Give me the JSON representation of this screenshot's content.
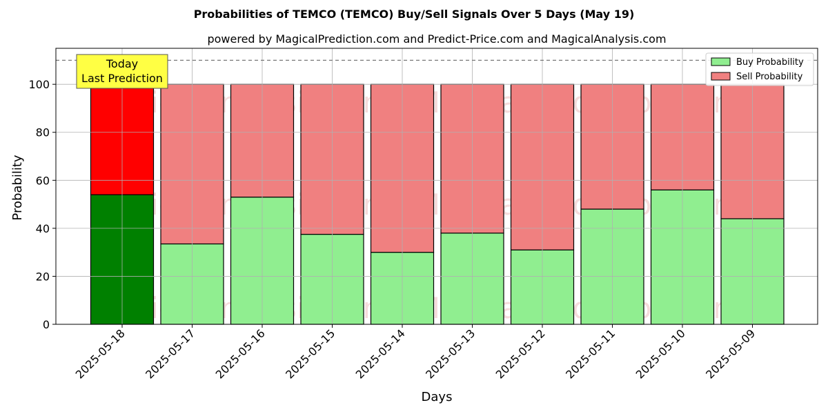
{
  "chart_data": {
    "type": "bar",
    "stacked": true,
    "title": "Probabilities of TEMCO (TEMCO) Buy/Sell Signals Over 5 Days (May 19)",
    "subtitle": "powered by MagicalPrediction.com and Predict-Price.com and MagicalAnalysis.com",
    "xlabel": "Days",
    "ylabel": "Probability",
    "ylim": [
      0,
      115
    ],
    "yticks": [
      0,
      20,
      40,
      60,
      80,
      100
    ],
    "grid": true,
    "legend_position": "top-right",
    "reference_line": 110,
    "categories": [
      "2025-05-18",
      "2025-05-17",
      "2025-05-16",
      "2025-05-15",
      "2025-05-14",
      "2025-05-13",
      "2025-05-12",
      "2025-05-11",
      "2025-05-10",
      "2025-05-09"
    ],
    "series": [
      {
        "name": "Buy Probability",
        "color": "#90ee90",
        "highlight_color": "#008000",
        "values": [
          54,
          33.5,
          53,
          37.5,
          30,
          38,
          31,
          48,
          56,
          44
        ]
      },
      {
        "name": "Sell Probability",
        "color": "#f08080",
        "highlight_color": "#ff0000",
        "values": [
          46,
          66.5,
          47,
          62.5,
          70,
          62,
          69,
          52,
          44,
          56
        ]
      }
    ],
    "annotation": {
      "lines": [
        "Today",
        "Last Prediction"
      ],
      "category_index": 0,
      "background": "#ffff44"
    },
    "watermarks": [
      "MagicalAnalysis.com",
      "MagicalPrediction.com"
    ]
  }
}
